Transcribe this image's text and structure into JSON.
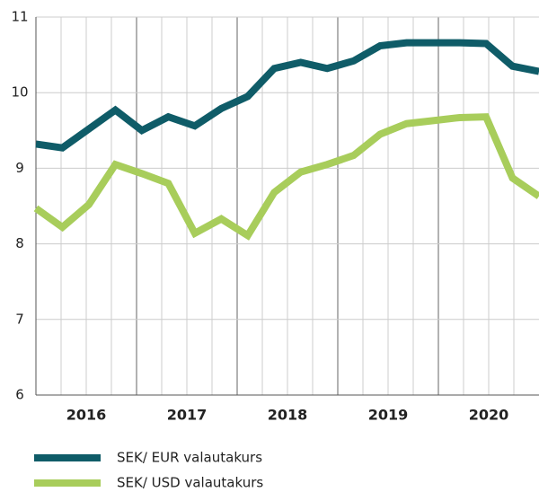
{
  "chart_data": {
    "type": "line",
    "categories": [
      null,
      null,
      null,
      null,
      null,
      null,
      null,
      null,
      null,
      null,
      null,
      null,
      null,
      null,
      null,
      null,
      null,
      null,
      null,
      null
    ],
    "year_labels": [
      "2016",
      "2017",
      "2018",
      "2019",
      "2020"
    ],
    "series": [
      {
        "name": "SEK/ EUR valautakurs",
        "color": "#0f5c68",
        "values": [
          9.32,
          9.27,
          9.52,
          9.77,
          9.5,
          9.68,
          9.56,
          9.79,
          9.95,
          10.32,
          10.4,
          10.32,
          10.42,
          10.62,
          10.66,
          10.66,
          10.66,
          10.65,
          10.35,
          10.28
        ]
      },
      {
        "name": "SEK/ USD valautakurs",
        "color": "#a8cd5b",
        "values": [
          8.47,
          8.22,
          8.52,
          9.05,
          8.93,
          8.8,
          8.14,
          8.33,
          8.11,
          8.68,
          8.95,
          9.05,
          9.17,
          9.45,
          9.59,
          9.63,
          9.67,
          9.68,
          8.87,
          8.63
        ]
      }
    ],
    "ylim": [
      6,
      11
    ],
    "yticks": [
      6,
      7,
      8,
      9,
      10,
      11
    ],
    "grid": true
  }
}
